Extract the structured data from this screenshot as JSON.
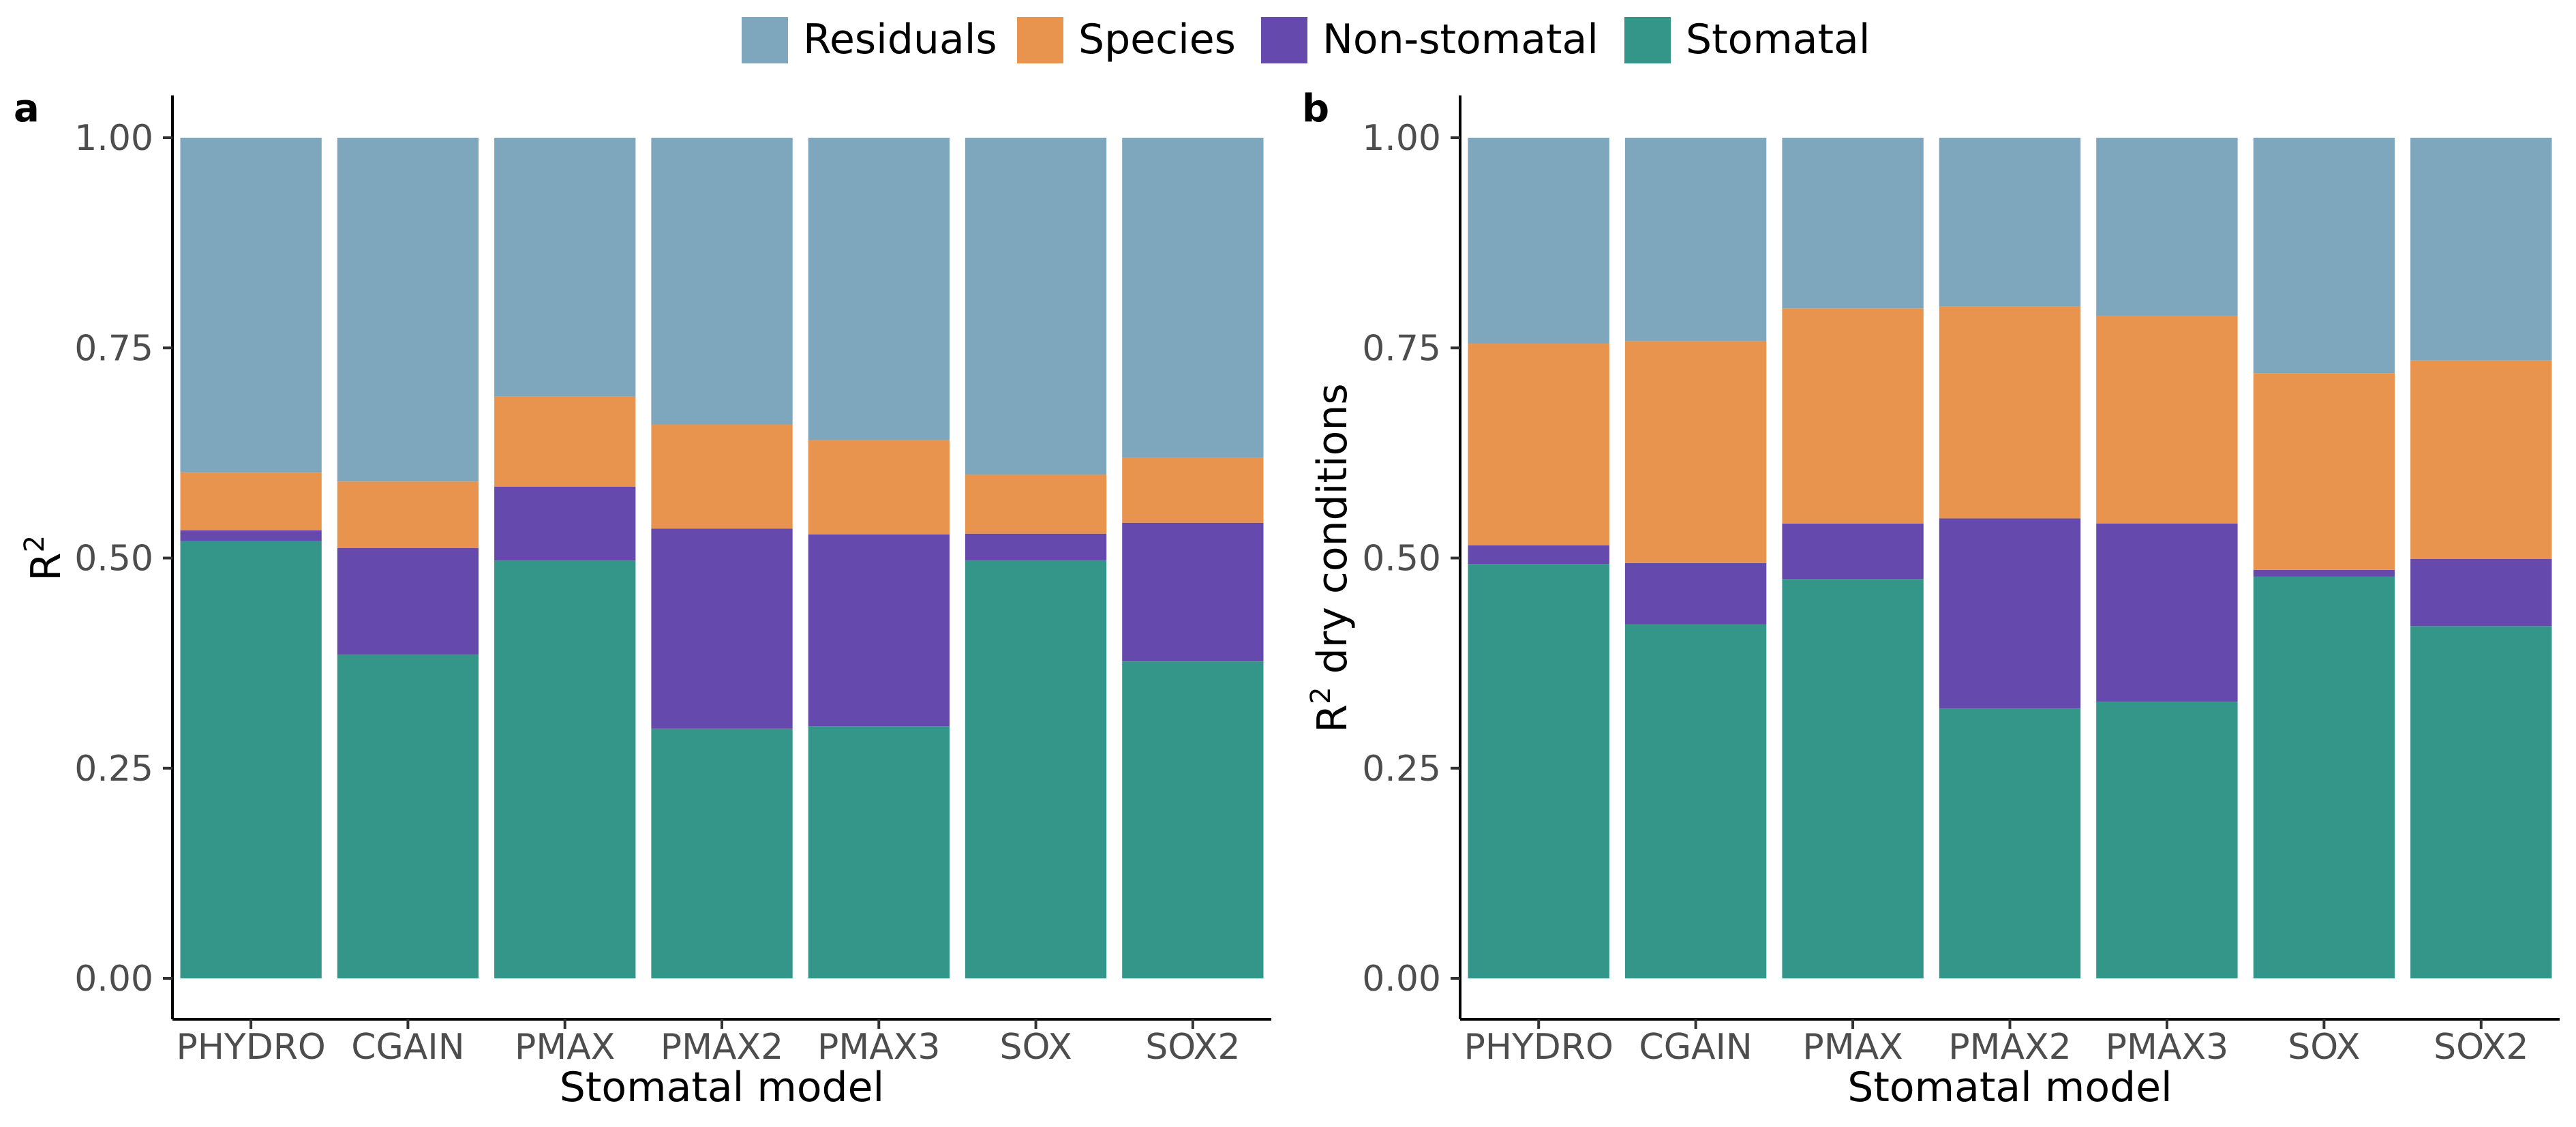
{
  "legend": {
    "entries": [
      {
        "name": "Residuals",
        "color": "#7ea6bd"
      },
      {
        "name": "Species",
        "color": "#e8944e"
      },
      {
        "name": "Non-stomatal",
        "color": "#6549ad"
      },
      {
        "name": "Stomatal",
        "color": "#339688"
      }
    ],
    "placement": "top-center"
  },
  "chart_data": [
    {
      "type": "bar",
      "stacked": true,
      "panel_label": "a",
      "xlabel": "Stomatal model",
      "ylabel": "R",
      "ylabel_superscript": "2",
      "ylim": [
        0,
        1
      ],
      "yticks": [
        "0.00",
        "0.25",
        "0.50",
        "0.75",
        "1.00"
      ],
      "categories": [
        "PHYDRO",
        "CGAIN",
        "PMAX",
        "PMAX2",
        "PMAX3",
        "SOX",
        "SOX2"
      ],
      "series": [
        {
          "name": "Stomatal",
          "values": [
            0.52,
            0.385,
            0.497,
            0.297,
            0.3,
            0.497,
            0.377
          ]
        },
        {
          "name": "Non-stomatal",
          "values": [
            0.013,
            0.127,
            0.088,
            0.238,
            0.228,
            0.032,
            0.165
          ]
        },
        {
          "name": "Species",
          "values": [
            0.069,
            0.079,
            0.107,
            0.124,
            0.112,
            0.07,
            0.077
          ]
        },
        {
          "name": "Residuals",
          "values": [
            0.398,
            0.409,
            0.308,
            0.341,
            0.36,
            0.401,
            0.381
          ]
        }
      ]
    },
    {
      "type": "bar",
      "stacked": true,
      "panel_label": "b",
      "xlabel": "Stomatal model",
      "ylabel": "R",
      "ylabel_superscript": "2",
      "ylabel_suffix": " dry conditions",
      "ylim": [
        0,
        1
      ],
      "yticks": [
        "0.00",
        "0.25",
        "0.50",
        "0.75",
        "1.00"
      ],
      "categories": [
        "PHYDRO",
        "CGAIN",
        "PMAX",
        "PMAX2",
        "PMAX3",
        "SOX",
        "SOX2"
      ],
      "series": [
        {
          "name": "Stomatal",
          "values": [
            0.493,
            0.421,
            0.475,
            0.321,
            0.329,
            0.478,
            0.419
          ]
        },
        {
          "name": "Non-stomatal",
          "values": [
            0.022,
            0.073,
            0.066,
            0.226,
            0.212,
            0.008,
            0.08
          ]
        },
        {
          "name": "Species",
          "values": [
            0.24,
            0.264,
            0.256,
            0.252,
            0.247,
            0.234,
            0.236
          ]
        },
        {
          "name": "Residuals",
          "values": [
            0.245,
            0.242,
            0.203,
            0.201,
            0.212,
            0.28,
            0.265
          ]
        }
      ]
    }
  ]
}
